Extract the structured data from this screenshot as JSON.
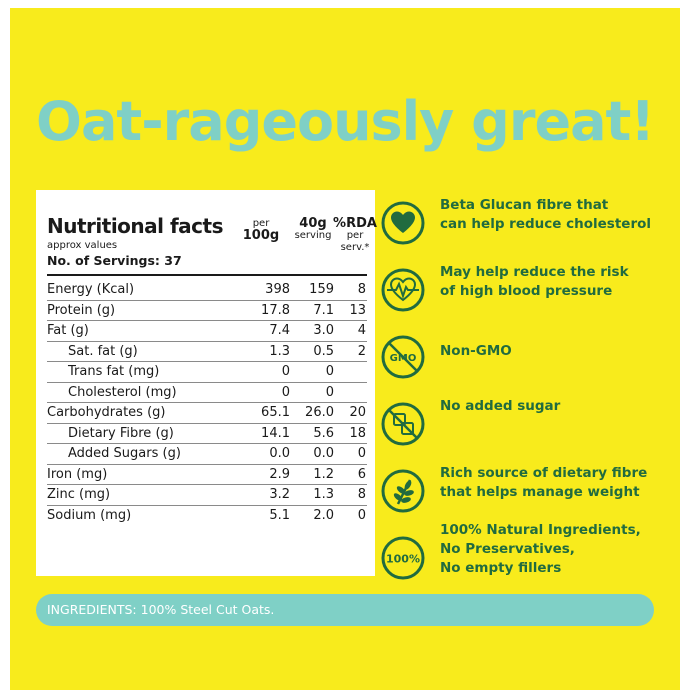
{
  "headline": "Oat-rageously great!",
  "colors": {
    "background": "#f8eb1c",
    "headline": "#7fd0c6",
    "feature_text": "#216b3f",
    "icon": "#216b3f",
    "ingredients_band": "#7fd0c6"
  },
  "nutrition": {
    "title": "Nutritional facts",
    "subtitle": "approx values",
    "servings": "No. of Servings: 37",
    "col_per100": {
      "top": "per",
      "bottom": "100g"
    },
    "col_serving": {
      "top": "40g",
      "bottom": "serving"
    },
    "col_rda": {
      "top": "%RDA",
      "mid": "per",
      "bottom": "serv.*"
    },
    "rows": [
      {
        "label": "Energy (Kcal)",
        "per100": "398",
        "serving": "159",
        "rda": "8",
        "indent": false
      },
      {
        "label": "Protein (g)",
        "per100": "17.8",
        "serving": "7.1",
        "rda": "13",
        "indent": false
      },
      {
        "label": "Fat (g)",
        "per100": "7.4",
        "serving": "3.0",
        "rda": "4",
        "indent": false
      },
      {
        "label": "Sat. fat (g)",
        "per100": "1.3",
        "serving": "0.5",
        "rda": "2",
        "indent": true
      },
      {
        "label": "Trans fat (mg)",
        "per100": "0",
        "serving": "0",
        "rda": "",
        "indent": true
      },
      {
        "label": "Cholesterol (mg)",
        "per100": "0",
        "serving": "0",
        "rda": "",
        "indent": true
      },
      {
        "label": "Carbohydrates (g)",
        "per100": "65.1",
        "serving": "26.0",
        "rda": "20",
        "indent": false
      },
      {
        "label": "Dietary Fibre (g)",
        "per100": "14.1",
        "serving": "5.6",
        "rda": "18",
        "indent": true
      },
      {
        "label": "Added Sugars (g)",
        "per100": "0.0",
        "serving": "0.0",
        "rda": "0",
        "indent": true
      },
      {
        "label": "Iron (mg)",
        "per100": "2.9",
        "serving": "1.2",
        "rda": "6",
        "indent": false
      },
      {
        "label": "Zinc (mg)",
        "per100": "3.2",
        "serving": "1.3",
        "rda": "8",
        "indent": false
      },
      {
        "label": "Sodium (mg)",
        "per100": "5.1",
        "serving": "2.0",
        "rda": "0",
        "indent": false
      }
    ]
  },
  "features": [
    {
      "icon": "heart-icon",
      "lines": [
        "Beta Glucan fibre that",
        "can help reduce cholesterol"
      ]
    },
    {
      "icon": "heartbeat-icon",
      "lines": [
        "May help reduce the risk",
        "of high blood pressure"
      ]
    },
    {
      "icon": "no-gmo-icon",
      "lines": [
        "Non-GMO"
      ],
      "badge": "GMO"
    },
    {
      "icon": "no-sugar-icon",
      "lines": [
        "No added sugar"
      ]
    },
    {
      "icon": "wheat-icon",
      "lines": [
        "Rich source of dietary fibre",
        "that helps manage weight"
      ]
    },
    {
      "icon": "hundred-percent-icon",
      "lines": [
        "100% Natural Ingredients,",
        "No Preservatives,",
        "No empty fillers"
      ],
      "badge": "100%"
    }
  ],
  "ingredients": "INGREDIENTS: 100% Steel Cut Oats."
}
